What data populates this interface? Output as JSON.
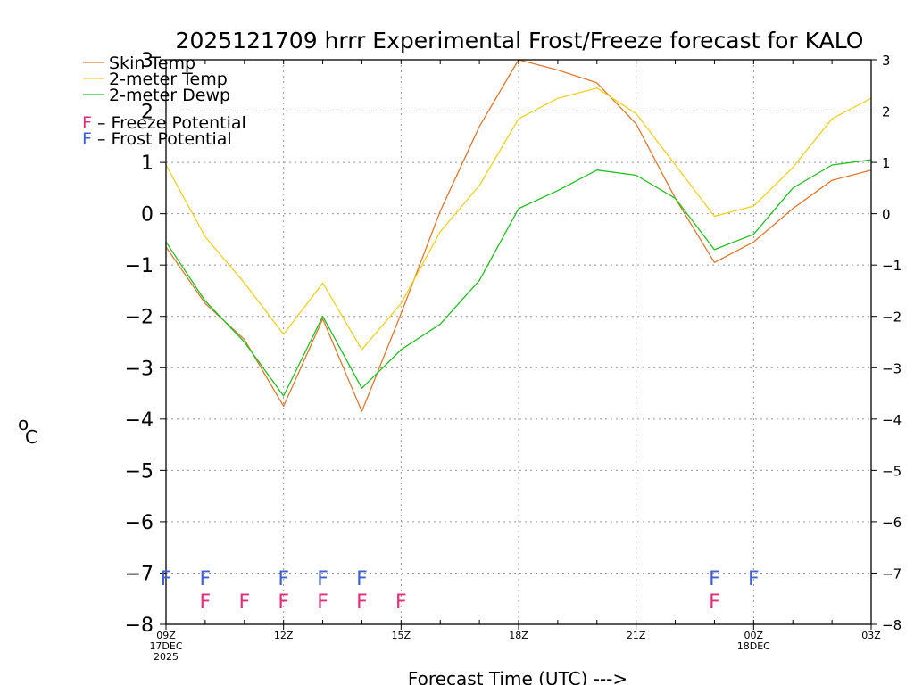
{
  "chart_data": {
    "type": "line",
    "title": "2025121709 hrrr Experimental Frost/Freeze forecast for KALO",
    "xlabel": "Forecast Time (UTC) --->",
    "ylabel": "°C",
    "ylabel_main": "C",
    "ylabel_sup": "o",
    "ylim": [
      -8,
      3
    ],
    "yticks": [
      -8,
      -7,
      -6,
      -5,
      -4,
      -3,
      -2,
      -1,
      0,
      1,
      2,
      3
    ],
    "grid": true,
    "x_hours": [
      0,
      1,
      2,
      3,
      4,
      5,
      6,
      7,
      8,
      9,
      10,
      11,
      12,
      13,
      14,
      15,
      16,
      17,
      18
    ],
    "x_ticks": [
      {
        "hour": 0,
        "lines": [
          "09Z",
          "17DEC",
          "2025"
        ]
      },
      {
        "hour": 3,
        "lines": [
          "12Z"
        ]
      },
      {
        "hour": 6,
        "lines": [
          "15Z"
        ]
      },
      {
        "hour": 9,
        "lines": [
          "18Z"
        ]
      },
      {
        "hour": 12,
        "lines": [
          "21Z"
        ]
      },
      {
        "hour": 15,
        "lines": [
          "00Z",
          "18DEC"
        ]
      },
      {
        "hour": 18,
        "lines": [
          "03Z"
        ]
      }
    ],
    "series": [
      {
        "name": "Skin Temp",
        "color": "#e07830",
        "values": [
          -0.65,
          -1.75,
          -2.45,
          -3.75,
          -2.05,
          -3.85,
          -1.95,
          0.05,
          1.7,
          3.0,
          2.8,
          2.55,
          1.75,
          0.3,
          -0.95,
          -0.55,
          0.1,
          0.65,
          0.85
        ]
      },
      {
        "name": "2-meter Temp",
        "color": "#f0d020",
        "values": [
          0.95,
          -0.45,
          -1.35,
          -2.35,
          -1.35,
          -2.65,
          -1.75,
          -0.35,
          0.55,
          1.85,
          2.25,
          2.45,
          1.95,
          0.95,
          -0.05,
          0.15,
          0.9,
          1.85,
          2.25
        ]
      },
      {
        "name": "2-meter Dewp",
        "color": "#20c020",
        "values": [
          -0.55,
          -1.7,
          -2.5,
          -3.55,
          -2.0,
          -3.4,
          -2.65,
          -2.15,
          -1.3,
          0.1,
          0.45,
          0.85,
          0.75,
          0.3,
          -0.7,
          -0.4,
          0.5,
          0.95,
          1.05
        ]
      }
    ],
    "flag_legend": [
      {
        "letter": "F",
        "label": " – Freeze Potential",
        "color": "#e0307a"
      },
      {
        "letter": "F",
        "label": " – Frost Potential",
        "color": "#4060d0"
      }
    ],
    "frost_hours": [
      0,
      1,
      3,
      4,
      5,
      14,
      15
    ],
    "freeze_hours": [
      1,
      2,
      3,
      4,
      5,
      6,
      14
    ],
    "flag_letter": "F",
    "frost_color": "#4060d0",
    "freeze_color": "#e0307a",
    "frost_y": -7.1,
    "freeze_y": -7.55
  }
}
